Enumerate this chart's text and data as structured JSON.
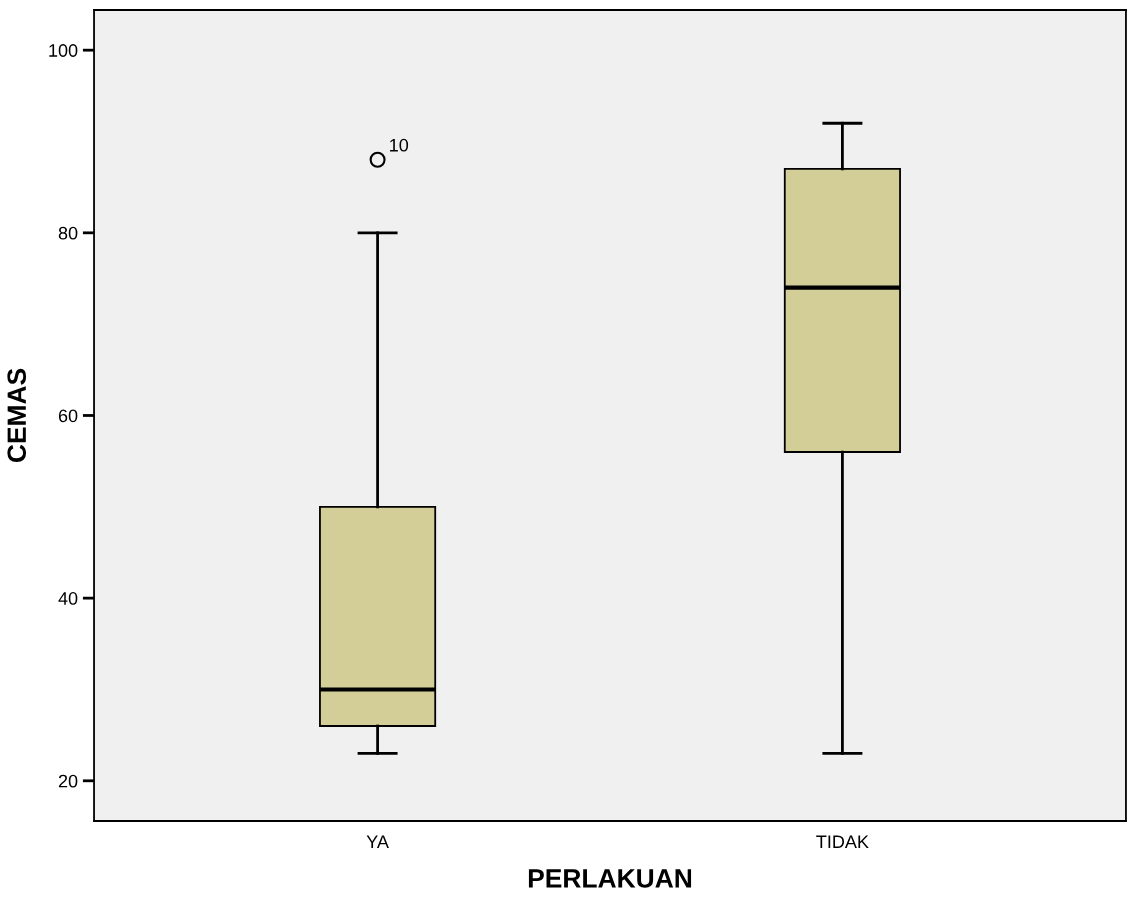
{
  "chart_data": {
    "type": "box",
    "xlabel": "PERLAKUAN",
    "ylabel": "CEMAS",
    "categories": [
      "YA",
      "TIDAK"
    ],
    "boxes": [
      {
        "low": 23,
        "q1": 26,
        "median": 30,
        "q3": 50,
        "high": 80,
        "outliers": [
          88
        ]
      },
      {
        "low": 23,
        "q1": 56,
        "median": 74,
        "q3": 87,
        "high": 92
      }
    ],
    "color": "#d3ce97",
    "ylim": [
      15.6,
      104.4
    ],
    "yticks": [
      20,
      40,
      60,
      80,
      100
    ],
    "annotations": [
      "10"
    ],
    "grid": false,
    "legend": false
  }
}
